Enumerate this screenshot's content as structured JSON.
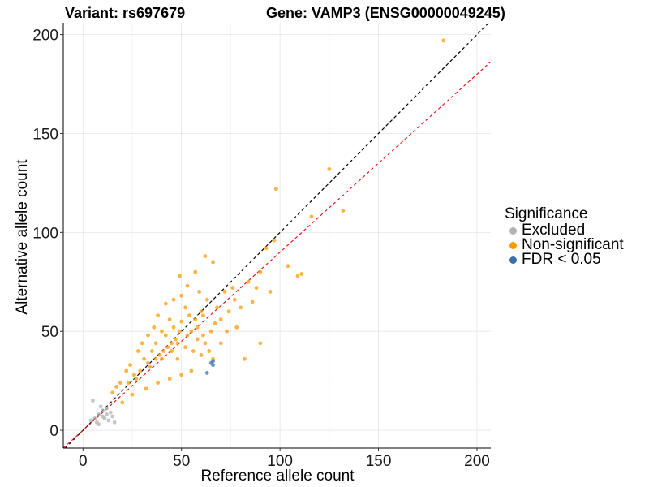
{
  "title_left": "Variant: rs697679",
  "title_right": "Gene: VAMP3 (ENSG00000049245)",
  "legend": {
    "title": "Significance",
    "items": [
      {
        "label": "Excluded",
        "color": "#b3b3b3"
      },
      {
        "label": "Non-significant",
        "color": "#ff9900"
      },
      {
        "label": "FDR < 0.05",
        "color": "#3a6fb0"
      }
    ]
  },
  "chart_data": {
    "type": "scatter",
    "title": "Variant: rs697679    Gene: VAMP3 (ENSG00000049245)",
    "xlabel": "Reference allele count",
    "ylabel": "Alternative allele count",
    "xlim": [
      -10,
      207
    ],
    "ylim": [
      -9,
      206
    ],
    "xticks": [
      0,
      50,
      100,
      150,
      200
    ],
    "yticks": [
      0,
      50,
      100,
      150,
      200
    ],
    "grid": true,
    "legend_position": "right",
    "reference_lines": [
      {
        "name": "identity",
        "slope": 1.0,
        "intercept": 0,
        "color": "#000000",
        "style": "dashed"
      },
      {
        "name": "fit",
        "slope": 0.9,
        "intercept": 0,
        "color": "#e41a1c",
        "style": "dashed"
      }
    ],
    "series": [
      {
        "name": "Excluded",
        "color": "#b3b3b3",
        "points": [
          [
            4,
            5
          ],
          [
            5,
            15
          ],
          [
            6,
            6
          ],
          [
            7,
            4
          ],
          [
            8,
            8
          ],
          [
            8,
            3
          ],
          [
            9,
            12
          ],
          [
            10,
            7
          ],
          [
            10,
            10
          ],
          [
            11,
            6
          ],
          [
            12,
            8
          ],
          [
            12,
            11
          ],
          [
            13,
            5
          ],
          [
            14,
            9
          ],
          [
            15,
            7
          ],
          [
            16,
            4
          ]
        ]
      },
      {
        "name": "Non-significant",
        "color": "#ff9900",
        "points": [
          [
            183,
            197
          ],
          [
            125,
            132
          ],
          [
            98,
            122
          ],
          [
            132,
            111
          ],
          [
            116,
            108
          ],
          [
            109,
            78
          ],
          [
            111,
            79
          ],
          [
            104,
            83
          ],
          [
            97,
            96
          ],
          [
            93,
            92
          ],
          [
            90,
            80
          ],
          [
            88,
            72
          ],
          [
            95,
            70
          ],
          [
            86,
            65
          ],
          [
            80,
            62
          ],
          [
            77,
            66
          ],
          [
            84,
            75
          ],
          [
            62,
            88
          ],
          [
            66,
            85
          ],
          [
            57,
            80
          ],
          [
            53,
            73
          ],
          [
            49,
            78
          ],
          [
            74,
            60
          ],
          [
            70,
            56
          ],
          [
            67,
            54
          ],
          [
            60,
            60
          ],
          [
            52,
            62
          ],
          [
            46,
            66
          ],
          [
            42,
            64
          ],
          [
            38,
            58
          ],
          [
            36,
            52
          ],
          [
            33,
            48
          ],
          [
            30,
            44
          ],
          [
            28,
            40
          ],
          [
            24,
            33
          ],
          [
            22,
            30
          ],
          [
            19,
            24
          ],
          [
            17,
            22
          ],
          [
            15,
            19
          ],
          [
            27,
            26
          ],
          [
            34,
            32
          ],
          [
            40,
            36
          ],
          [
            45,
            40
          ],
          [
            48,
            44
          ],
          [
            55,
            50
          ],
          [
            58,
            46
          ],
          [
            62,
            44
          ],
          [
            64,
            40
          ],
          [
            66,
            36
          ],
          [
            70,
            44
          ],
          [
            73,
            50
          ],
          [
            78,
            52
          ],
          [
            90,
            44
          ],
          [
            82,
            36
          ],
          [
            55,
            30
          ],
          [
            50,
            28
          ],
          [
            44,
            26
          ],
          [
            38,
            24
          ],
          [
            32,
            21
          ],
          [
            25,
            18
          ],
          [
            20,
            14
          ],
          [
            42,
            48
          ],
          [
            46,
            52
          ],
          [
            50,
            55
          ],
          [
            54,
            58
          ],
          [
            58,
            52
          ],
          [
            61,
            48
          ],
          [
            65,
            50
          ],
          [
            68,
            62
          ],
          [
            72,
            70
          ],
          [
            76,
            72
          ],
          [
            63,
            66
          ],
          [
            59,
            70
          ],
          [
            50,
            68
          ],
          [
            44,
            56
          ],
          [
            40,
            50
          ],
          [
            37,
            44
          ],
          [
            35,
            40
          ],
          [
            31,
            36
          ],
          [
            29,
            30
          ],
          [
            26,
            28
          ],
          [
            23,
            24
          ],
          [
            48,
            36
          ],
          [
            52,
            42
          ],
          [
            56,
            40
          ],
          [
            60,
            38
          ],
          [
            47,
            46
          ],
          [
            43,
            42
          ],
          [
            39,
            38
          ],
          [
            53,
            48
          ],
          [
            57,
            56
          ],
          [
            61,
            58
          ],
          [
            49,
            50
          ],
          [
            45,
            44
          ],
          [
            41,
            40
          ],
          [
            37,
            36
          ],
          [
            33,
            34
          ]
        ]
      },
      {
        "name": "FDR < 0.05",
        "color": "#3a6fb0",
        "points": [
          [
            66,
            33
          ],
          [
            66,
            35
          ],
          [
            65,
            34
          ],
          [
            63,
            29
          ]
        ]
      }
    ]
  }
}
